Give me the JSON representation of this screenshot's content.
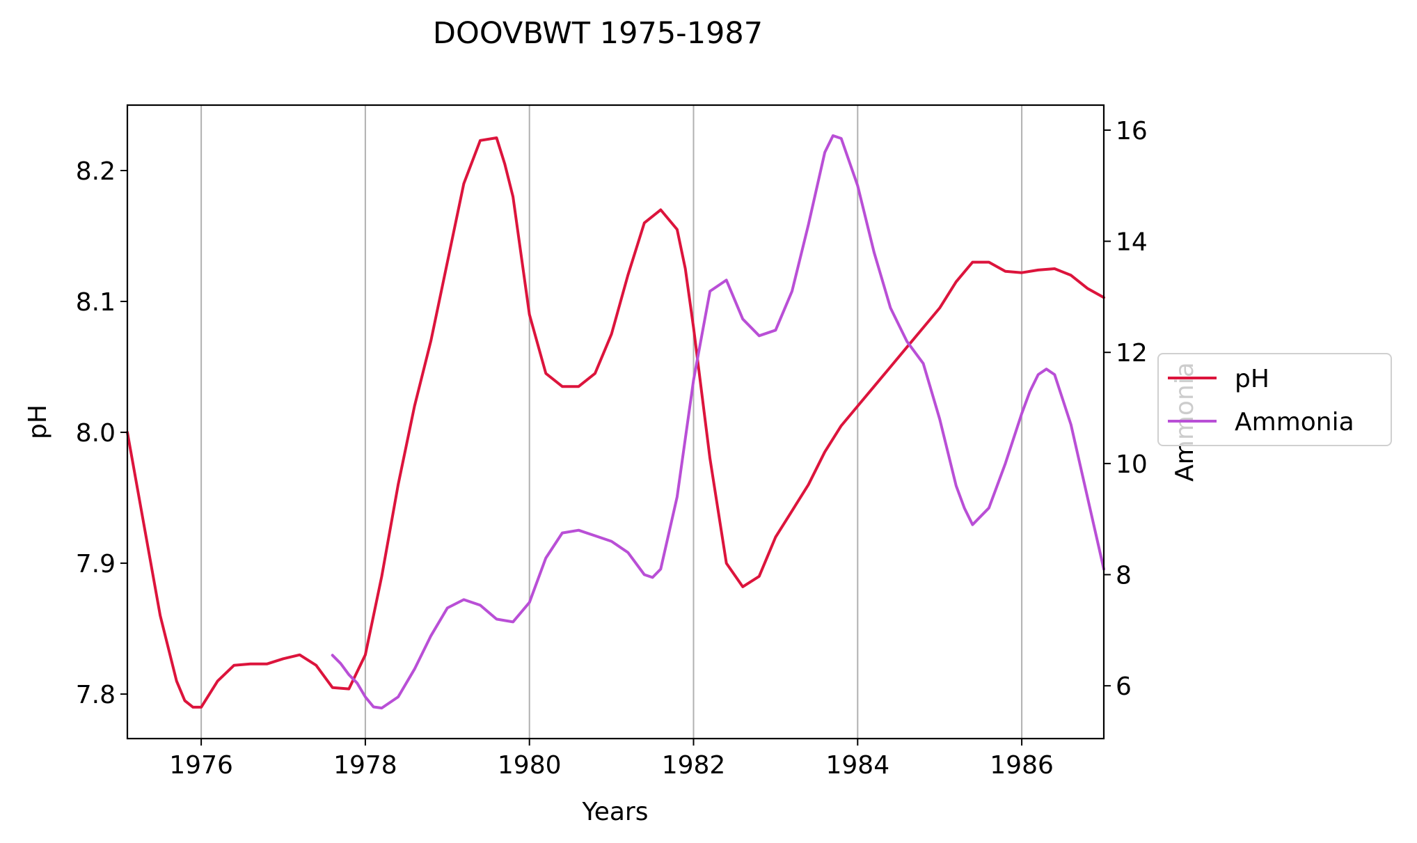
{
  "chart_data": {
    "type": "line",
    "title": "DOOVBWT 1975-1987",
    "xlabel": "Years",
    "ylabel": "pH",
    "y2label": "Ammonia",
    "xlim": [
      1975.1,
      1987.0
    ],
    "ylim": [
      7.766,
      8.25
    ],
    "y2lim": [
      5.05,
      16.45
    ],
    "x_ticks": [
      1976,
      1978,
      1980,
      1982,
      1984,
      1986
    ],
    "y_ticks": [
      7.8,
      7.9,
      8.0,
      8.1,
      8.2
    ],
    "y2_ticks": [
      6,
      8,
      10,
      12,
      14,
      16
    ],
    "x_tick_labels": [
      "1976",
      "1978",
      "1980",
      "1982",
      "1984",
      "1986"
    ],
    "y_tick_labels": [
      "7.8",
      "7.9",
      "8.0",
      "8.1",
      "8.2"
    ],
    "y2_tick_labels": [
      "6",
      "8",
      "10",
      "12",
      "14",
      "16"
    ],
    "grid": "vertical",
    "legend_position": "right",
    "series": [
      {
        "name": "pH",
        "axis": "left",
        "color": "#dc143c",
        "x": [
          1975.1,
          1975.3,
          1975.5,
          1975.7,
          1975.8,
          1975.9,
          1976.0,
          1976.2,
          1976.4,
          1976.6,
          1976.8,
          1977.0,
          1977.2,
          1977.4,
          1977.6,
          1977.8,
          1978.0,
          1978.2,
          1978.4,
          1978.6,
          1978.8,
          1979.0,
          1979.2,
          1979.4,
          1979.6,
          1979.7,
          1979.8,
          1980.0,
          1980.2,
          1980.4,
          1980.6,
          1980.8,
          1981.0,
          1981.2,
          1981.4,
          1981.6,
          1981.8,
          1981.9,
          1982.0,
          1982.2,
          1982.4,
          1982.6,
          1982.8,
          1982.9,
          1983.0,
          1983.2,
          1983.4,
          1983.6,
          1983.8,
          1984.0,
          1984.2,
          1984.4,
          1984.6,
          1984.8,
          1985.0,
          1985.2,
          1985.4,
          1985.6,
          1985.8,
          1986.0,
          1986.2,
          1986.4,
          1986.6,
          1986.8,
          1987.0
        ],
        "y": [
          8.0,
          7.93,
          7.86,
          7.81,
          7.795,
          7.79,
          7.79,
          7.81,
          7.822,
          7.823,
          7.823,
          7.827,
          7.83,
          7.822,
          7.805,
          7.804,
          7.83,
          7.89,
          7.96,
          8.02,
          8.07,
          8.13,
          8.19,
          8.223,
          8.225,
          8.205,
          8.18,
          8.09,
          8.045,
          8.035,
          8.035,
          8.045,
          8.075,
          8.12,
          8.16,
          8.17,
          8.155,
          8.125,
          8.08,
          7.98,
          7.9,
          7.882,
          7.89,
          7.905,
          7.92,
          7.94,
          7.96,
          7.985,
          8.005,
          8.02,
          8.035,
          8.05,
          8.065,
          8.08,
          8.095,
          8.115,
          8.13,
          8.13,
          8.123,
          8.122,
          8.124,
          8.125,
          8.12,
          8.11,
          8.103
        ]
      },
      {
        "name": "Ammonia",
        "axis": "right",
        "color": "#b94fd6",
        "x": [
          1977.6,
          1977.7,
          1977.8,
          1977.9,
          1978.0,
          1978.1,
          1978.2,
          1978.4,
          1978.6,
          1978.8,
          1979.0,
          1979.2,
          1979.4,
          1979.6,
          1979.8,
          1980.0,
          1980.2,
          1980.4,
          1980.6,
          1980.8,
          1981.0,
          1981.2,
          1981.4,
          1981.5,
          1981.6,
          1981.8,
          1982.0,
          1982.2,
          1982.4,
          1982.6,
          1982.8,
          1983.0,
          1983.2,
          1983.4,
          1983.6,
          1983.7,
          1983.8,
          1984.0,
          1984.2,
          1984.4,
          1984.6,
          1984.8,
          1985.0,
          1985.2,
          1985.3,
          1985.4,
          1985.6,
          1985.8,
          1986.0,
          1986.1,
          1986.2,
          1986.3,
          1986.4,
          1986.6,
          1986.8,
          1987.0
        ],
        "y": [
          6.55,
          6.4,
          6.2,
          6.05,
          5.8,
          5.62,
          5.6,
          5.8,
          6.3,
          6.9,
          7.4,
          7.55,
          7.45,
          7.2,
          7.15,
          7.5,
          8.3,
          8.75,
          8.8,
          8.7,
          8.6,
          8.4,
          8.0,
          7.95,
          8.1,
          9.4,
          11.5,
          13.1,
          13.3,
          12.6,
          12.3,
          12.4,
          13.1,
          14.3,
          15.6,
          15.9,
          15.85,
          15.0,
          13.8,
          12.8,
          12.2,
          11.8,
          10.8,
          9.6,
          9.2,
          8.9,
          9.2,
          10.0,
          10.9,
          11.3,
          11.6,
          11.7,
          11.6,
          10.7,
          9.4,
          8.1
        ]
      }
    ]
  }
}
